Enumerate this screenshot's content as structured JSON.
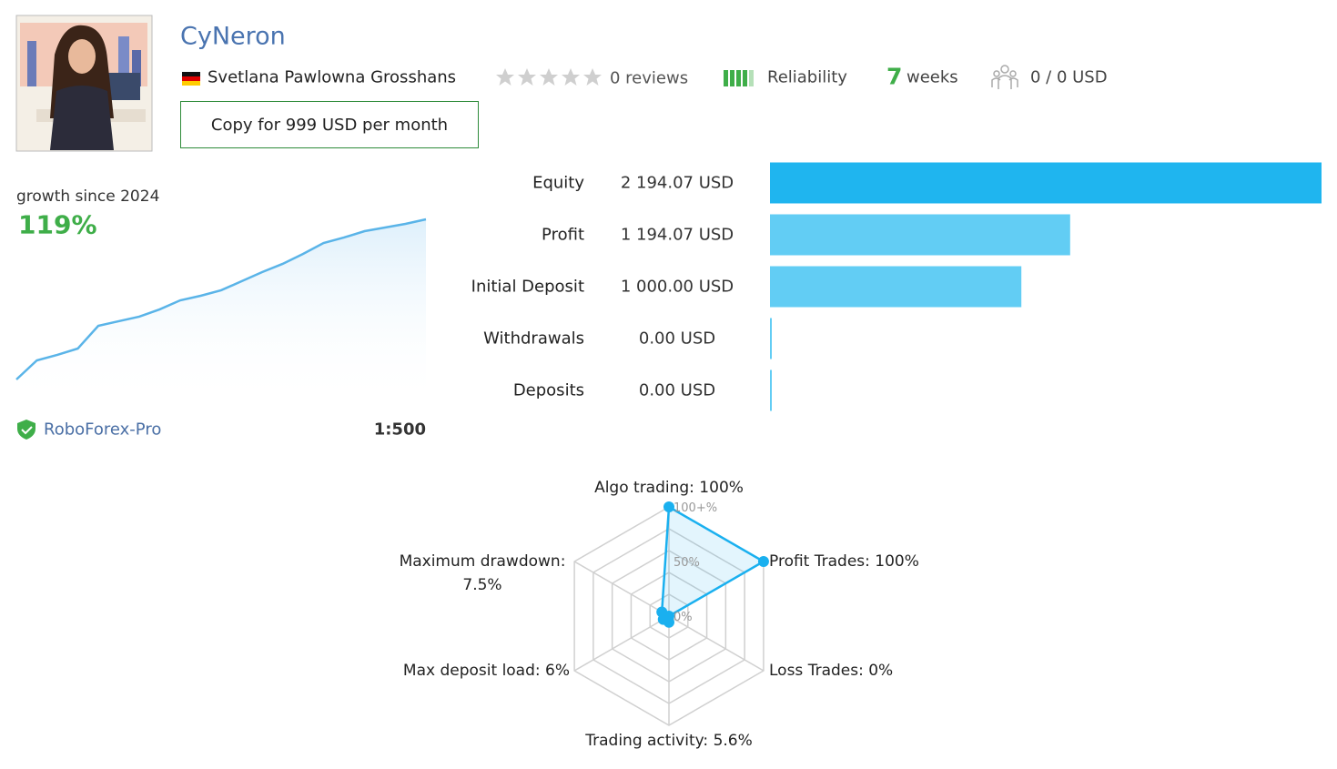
{
  "header": {
    "title": "CyNeron",
    "author": "Svetlana Pawlowna Grosshans",
    "reviews": "0 reviews",
    "reliability": "Reliability",
    "weeks_count": "7",
    "weeks": "weeks",
    "subscribers": "0 / 0 USD",
    "copy_button": "Copy for 999 USD per month"
  },
  "account": {
    "broker": "RoboForex-Pro",
    "leverage": "1:500"
  },
  "chart_data": [
    {
      "type": "line",
      "title": "growth since 2024",
      "annotation": "119%",
      "color": "#5ab4e8",
      "values": [
        0,
        14.2,
        18.3,
        23,
        39.9,
        43.3,
        46.7,
        52.1,
        58.8,
        62.2,
        66.3,
        73,
        79.8,
        85.9,
        93.3,
        101.4,
        105.5,
        110.2,
        112.9,
        115.6,
        119
      ]
    },
    {
      "type": "bar",
      "orientation": "horizontal",
      "categories": [
        "Equity",
        "Profit",
        "Initial Deposit",
        "Withdrawals",
        "Deposits"
      ],
      "values": [
        2194.07,
        1194.07,
        1000,
        0,
        0
      ],
      "value_labels": [
        "2 194.07 USD",
        "1 194.07 USD",
        "1 000.00 USD",
        "0.00 USD",
        "0.00 USD"
      ],
      "colors": [
        "#1fb5ef",
        "#62cdf4",
        "#62cdf4",
        "#62cdf4",
        "#62cdf4"
      ]
    },
    {
      "type": "radar",
      "categories": [
        "Algo trading: 100%",
        "Profit Trades: 100%",
        "Loss Trades: 0%",
        "Trading activity: 5.6%",
        "Max deposit load: 6%",
        "Maximum drawdown: 7.5%"
      ],
      "values": [
        100,
        100,
        0,
        5.6,
        6,
        7.5
      ],
      "ylim": [
        0,
        100
      ],
      "yticks": [
        {
          "value": 0,
          "label": "0%"
        },
        {
          "value": 50,
          "label": "50%"
        },
        {
          "value": 100,
          "label": "100+%"
        }
      ],
      "color": "#1ab0ef"
    }
  ]
}
